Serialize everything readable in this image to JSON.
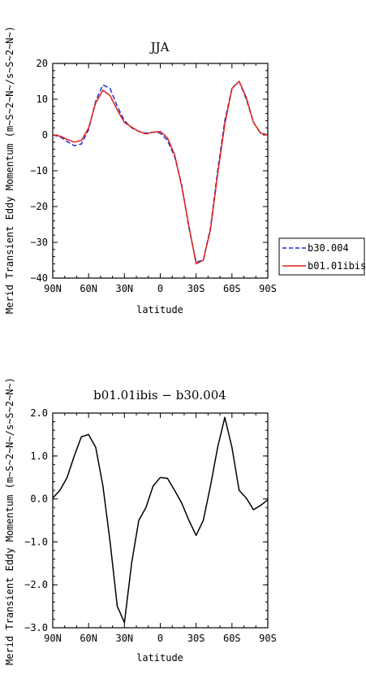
{
  "chart_data": [
    {
      "type": "line",
      "title": "JJA",
      "xlabel": "latitude",
      "ylabel": "Merid Transient Eddy Momentum (m~S~2~N~/s~S~2~N~)",
      "xticks": [
        "90N",
        "60N",
        "30N",
        "0",
        "30S",
        "60S",
        "90S"
      ],
      "yticks": [
        "20",
        "10",
        "0",
        "−10",
        "−20",
        "−30",
        "−40"
      ],
      "xlim": [
        90,
        -90
      ],
      "ylim": [
        -40,
        20
      ],
      "legend": "right",
      "grid": false,
      "x": [
        90,
        84,
        78,
        72,
        66,
        60,
        54,
        48,
        42,
        36,
        30,
        24,
        18,
        12,
        6,
        0,
        -6,
        -12,
        -18,
        -24,
        -30,
        -36,
        -42,
        -48,
        -54,
        -60,
        -66,
        -72,
        -78,
        -84,
        -90
      ],
      "series": [
        {
          "name": "b30.004",
          "color": "#1f2fd0",
          "dash": "dashed",
          "values": [
            0,
            -0.5,
            -1.8,
            -3.0,
            -2.5,
            1.5,
            9.5,
            14.0,
            13.0,
            8.0,
            4.0,
            2.0,
            1.0,
            0.5,
            0.8,
            0.5,
            -1.5,
            -6.0,
            -14.0,
            -26.0,
            -35.5,
            -35.0,
            -26.0,
            -10.0,
            4.0,
            13.0,
            15.0,
            10.0,
            3.5,
            0.5,
            0
          ]
        },
        {
          "name": "b01.01ibis",
          "color": "#e0201a",
          "dash": "solid",
          "values": [
            0,
            -0.3,
            -1.2,
            -2.0,
            -1.5,
            2.0,
            9.0,
            12.5,
            11.0,
            7.0,
            3.5,
            2.2,
            1.0,
            0.3,
            0.8,
            1.0,
            -0.8,
            -5.5,
            -14.5,
            -25.5,
            -36.0,
            -35.0,
            -26.5,
            -11.0,
            3.0,
            13.0,
            15.0,
            10.5,
            3.5,
            0.5,
            0
          ]
        }
      ]
    },
    {
      "type": "line",
      "title": "b01.01ibis − b30.004",
      "xlabel": "latitude",
      "ylabel": "Merid Transient Eddy Momentum (m~S~2~N~/s~S~2~N~)",
      "xticks": [
        "90N",
        "60N",
        "30N",
        "0",
        "30S",
        "60S",
        "90S"
      ],
      "yticks": [
        "2.0",
        "1.0",
        "0.0",
        "−1.0",
        "−2.0",
        "−3.0"
      ],
      "xlim": [
        90,
        -90
      ],
      "ylim": [
        -3,
        2
      ],
      "grid": false,
      "x": [
        90,
        84,
        78,
        72,
        66,
        60,
        54,
        48,
        42,
        36,
        30,
        24,
        18,
        12,
        6,
        0,
        -6,
        -12,
        -18,
        -24,
        -30,
        -36,
        -42,
        -48,
        -54,
        -60,
        -66,
        -72,
        -78,
        -84,
        -90
      ],
      "series": [
        {
          "color": "#000000",
          "dash": "solid",
          "values": [
            0.02,
            0.2,
            0.5,
            1.0,
            1.45,
            1.5,
            1.2,
            0.3,
            -1.0,
            -2.5,
            -2.88,
            -1.5,
            -0.5,
            -0.2,
            0.3,
            0.5,
            0.48,
            0.2,
            -0.1,
            -0.5,
            -0.85,
            -0.5,
            0.3,
            1.2,
            1.9,
            1.2,
            0.2,
            0.02,
            -0.25,
            -0.15,
            -0.02
          ]
        }
      ]
    }
  ]
}
